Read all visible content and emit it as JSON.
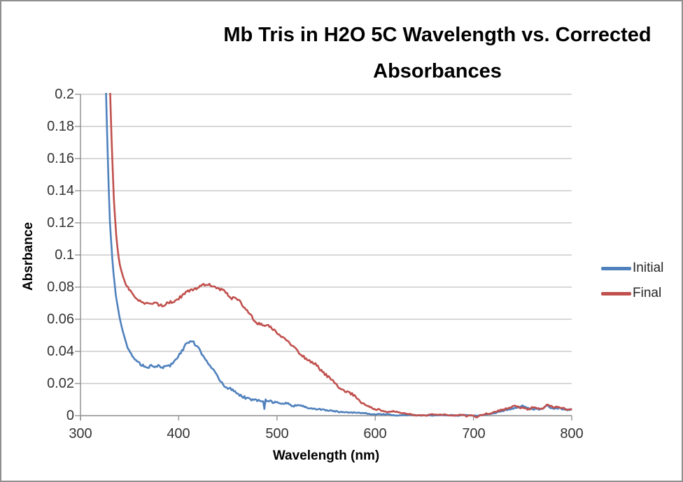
{
  "chart_data": {
    "type": "line",
    "title": "Mb Tris in H2O 5C Wavelength vs. Corrected Absorbances",
    "xlabel": "Wavelength (nm)",
    "ylabel": "Absrbance",
    "xlim": [
      300,
      800
    ],
    "ylim": [
      0,
      0.2
    ],
    "xticks": [
      300,
      400,
      500,
      600,
      700,
      800
    ],
    "yticks": [
      0,
      0.02,
      0.04,
      0.06,
      0.08,
      0.1,
      0.12,
      0.14,
      0.16,
      0.18,
      0.2
    ],
    "grid": "horizontal",
    "gridline_color": "#b0b0b0",
    "axis_color": "#8c8c8c",
    "plot_background": "#ffffff",
    "legend_position": "right",
    "series": [
      {
        "name": "Initial",
        "color": "#4F81BD",
        "noise_amplitude": 0.0012,
        "points": [
          [
            324,
            0.26
          ],
          [
            326,
            0.2
          ],
          [
            328,
            0.155
          ],
          [
            330,
            0.12
          ],
          [
            333,
            0.092
          ],
          [
            336,
            0.075
          ],
          [
            340,
            0.06
          ],
          [
            344,
            0.05
          ],
          [
            348,
            0.043
          ],
          [
            352,
            0.038
          ],
          [
            356,
            0.0345
          ],
          [
            360,
            0.033
          ],
          [
            364,
            0.0315
          ],
          [
            368,
            0.0305
          ],
          [
            372,
            0.0302
          ],
          [
            376,
            0.0298
          ],
          [
            380,
            0.0305
          ],
          [
            384,
            0.03
          ],
          [
            388,
            0.031
          ],
          [
            392,
            0.0318
          ],
          [
            396,
            0.034
          ],
          [
            400,
            0.037
          ],
          [
            404,
            0.041
          ],
          [
            408,
            0.045
          ],
          [
            412,
            0.047
          ],
          [
            415,
            0.0465
          ],
          [
            418,
            0.044
          ],
          [
            422,
            0.0405
          ],
          [
            426,
            0.037
          ],
          [
            430,
            0.033
          ],
          [
            434,
            0.029
          ],
          [
            438,
            0.025
          ],
          [
            442,
            0.022
          ],
          [
            446,
            0.0195
          ],
          [
            450,
            0.0175
          ],
          [
            455,
            0.0155
          ],
          [
            460,
            0.014
          ],
          [
            465,
            0.0125
          ],
          [
            470,
            0.0115
          ],
          [
            475,
            0.0105
          ],
          [
            480,
            0.01
          ],
          [
            484,
            0.0095
          ],
          [
            486,
            0.009
          ],
          [
            487,
            0.0025
          ],
          [
            488,
            0.009
          ],
          [
            492,
            0.0088
          ],
          [
            496,
            0.008
          ],
          [
            500,
            0.0078
          ],
          [
            505,
            0.0073
          ],
          [
            510,
            0.007
          ],
          [
            515,
            0.0063
          ],
          [
            520,
            0.006
          ],
          [
            525,
            0.0056
          ],
          [
            530,
            0.0052
          ],
          [
            535,
            0.0048
          ],
          [
            540,
            0.0043
          ],
          [
            545,
            0.0039
          ],
          [
            550,
            0.0035
          ],
          [
            555,
            0.0032
          ],
          [
            560,
            0.003
          ],
          [
            565,
            0.0028
          ],
          [
            570,
            0.0026
          ],
          [
            575,
            0.002
          ],
          [
            580,
            0.0017
          ],
          [
            585,
            0.0015
          ],
          [
            590,
            0.0013
          ],
          [
            595,
            0.001
          ],
          [
            600,
            0.0009
          ],
          [
            610,
            0.0006
          ],
          [
            620,
            0.0004
          ],
          [
            630,
            0.0003
          ],
          [
            640,
            0.0003
          ],
          [
            650,
            0.0002
          ],
          [
            660,
            0.0002
          ],
          [
            670,
            0.0002
          ],
          [
            680,
            0.0002
          ],
          [
            690,
            0.0002
          ],
          [
            700,
            0.0002
          ],
          [
            710,
            0.0004
          ],
          [
            715,
            0.0008
          ],
          [
            720,
            0.0012
          ],
          [
            725,
            0.002
          ],
          [
            730,
            0.003
          ],
          [
            735,
            0.004
          ],
          [
            740,
            0.0048
          ],
          [
            745,
            0.005
          ],
          [
            750,
            0.0055
          ],
          [
            755,
            0.005
          ],
          [
            760,
            0.0048
          ],
          [
            765,
            0.0045
          ],
          [
            770,
            0.0042
          ],
          [
            775,
            0.006
          ],
          [
            780,
            0.0048
          ],
          [
            785,
            0.0042
          ],
          [
            790,
            0.0045
          ],
          [
            795,
            0.004
          ],
          [
            800,
            0.004
          ]
        ]
      },
      {
        "name": "Final",
        "color": "#C0504D",
        "noise_amplitude": 0.0013,
        "points": [
          [
            328,
            0.26
          ],
          [
            330,
            0.205
          ],
          [
            332,
            0.165
          ],
          [
            334,
            0.135
          ],
          [
            336,
            0.115
          ],
          [
            338,
            0.102
          ],
          [
            340,
            0.094
          ],
          [
            343,
            0.087
          ],
          [
            346,
            0.082
          ],
          [
            350,
            0.078
          ],
          [
            354,
            0.0745
          ],
          [
            358,
            0.0725
          ],
          [
            362,
            0.071
          ],
          [
            366,
            0.07
          ],
          [
            370,
            0.0695
          ],
          [
            374,
            0.0692
          ],
          [
            378,
            0.069
          ],
          [
            382,
            0.0695
          ],
          [
            386,
            0.07
          ],
          [
            390,
            0.0705
          ],
          [
            394,
            0.0715
          ],
          [
            398,
            0.0725
          ],
          [
            402,
            0.074
          ],
          [
            406,
            0.0755
          ],
          [
            410,
            0.077
          ],
          [
            414,
            0.0785
          ],
          [
            418,
            0.0795
          ],
          [
            422,
            0.0805
          ],
          [
            426,
            0.081
          ],
          [
            430,
            0.0812
          ],
          [
            434,
            0.0808
          ],
          [
            438,
            0.08
          ],
          [
            442,
            0.0788
          ],
          [
            446,
            0.077
          ],
          [
            450,
            0.075
          ],
          [
            455,
            0.0735
          ],
          [
            460,
            0.072
          ],
          [
            465,
            0.0685
          ],
          [
            470,
            0.0645
          ],
          [
            475,
            0.0615
          ],
          [
            480,
            0.0585
          ],
          [
            485,
            0.057
          ],
          [
            490,
            0.055
          ],
          [
            495,
            0.053
          ],
          [
            500,
            0.051
          ],
          [
            505,
            0.049
          ],
          [
            510,
            0.047
          ],
          [
            515,
            0.044
          ],
          [
            520,
            0.0415
          ],
          [
            525,
            0.0385
          ],
          [
            530,
            0.036
          ],
          [
            535,
            0.0335
          ],
          [
            540,
            0.0315
          ],
          [
            545,
            0.028
          ],
          [
            550,
            0.0245
          ],
          [
            555,
            0.022
          ],
          [
            560,
            0.02
          ],
          [
            565,
            0.017
          ],
          [
            570,
            0.0145
          ],
          [
            575,
            0.013
          ],
          [
            580,
            0.0113
          ],
          [
            585,
            0.009
          ],
          [
            590,
            0.0074
          ],
          [
            595,
            0.0055
          ],
          [
            600,
            0.004
          ],
          [
            605,
            0.003
          ],
          [
            610,
            0.0026
          ],
          [
            615,
            0.0024
          ],
          [
            620,
            0.0022
          ],
          [
            625,
            0.0017
          ],
          [
            630,
            0.0013
          ],
          [
            635,
            0.0008
          ],
          [
            640,
            0.0005
          ],
          [
            645,
            0.0005
          ],
          [
            650,
            0.0005
          ],
          [
            655,
            0.0004
          ],
          [
            660,
            0.0006
          ],
          [
            665,
            0.0004
          ],
          [
            670,
            0.0004
          ],
          [
            675,
            0.0003
          ],
          [
            680,
            0.0003
          ],
          [
            685,
            0.0003
          ],
          [
            690,
            0.0002
          ],
          [
            693,
            -0.0008
          ],
          [
            696,
            0.0003
          ],
          [
            700,
            0.0002
          ],
          [
            703,
            -0.001
          ],
          [
            706,
            0.0003
          ],
          [
            710,
            0.0008
          ],
          [
            713,
            0.0015
          ],
          [
            716,
            0.001
          ],
          [
            720,
            0.0018
          ],
          [
            724,
            0.0028
          ],
          [
            728,
            0.0038
          ],
          [
            732,
            0.0042
          ],
          [
            736,
            0.0048
          ],
          [
            740,
            0.005
          ],
          [
            744,
            0.0055
          ],
          [
            748,
            0.005
          ],
          [
            752,
            0.0048
          ],
          [
            756,
            0.0045
          ],
          [
            760,
            0.005
          ],
          [
            764,
            0.0046
          ],
          [
            768,
            0.0042
          ],
          [
            772,
            0.0045
          ],
          [
            775,
            0.0068
          ],
          [
            778,
            0.0055
          ],
          [
            782,
            0.0048
          ],
          [
            786,
            0.0045
          ],
          [
            790,
            0.0042
          ],
          [
            794,
            0.0038
          ],
          [
            798,
            0.0035
          ],
          [
            800,
            0.0035
          ]
        ]
      }
    ]
  }
}
